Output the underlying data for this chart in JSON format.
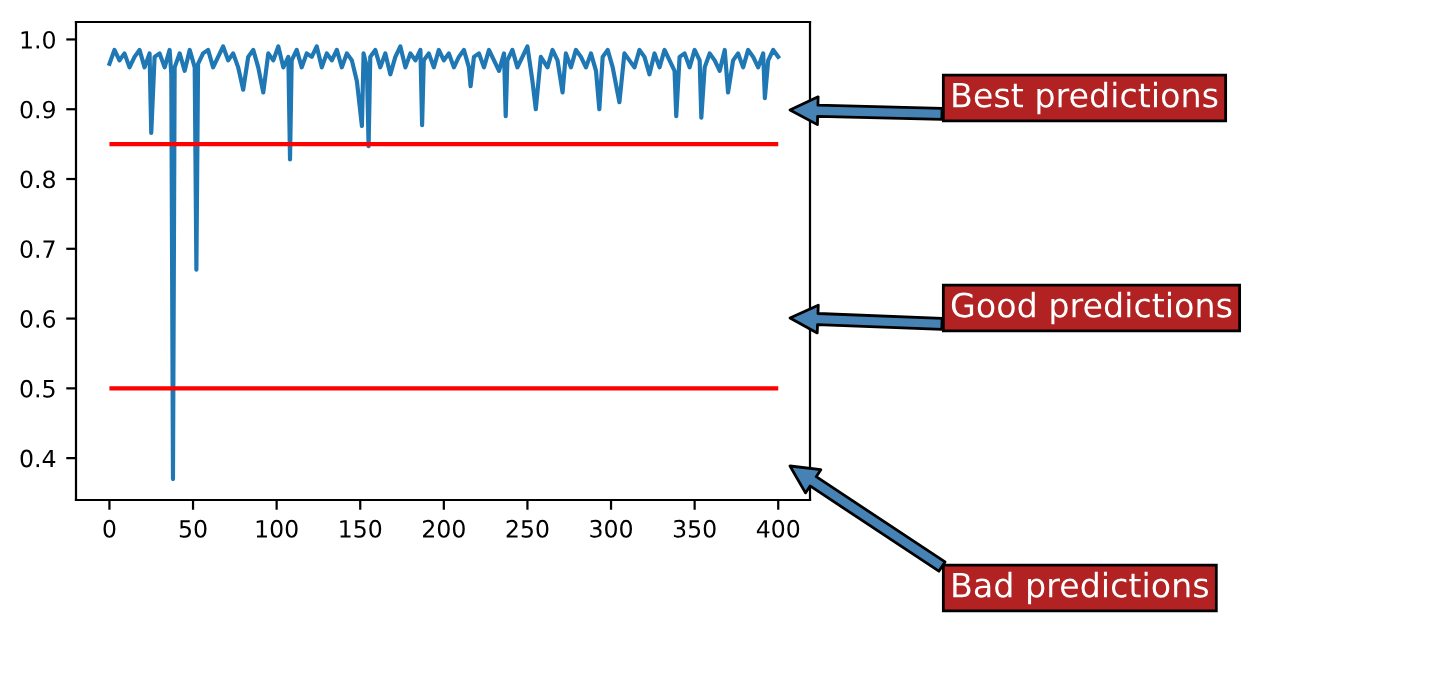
{
  "chart_data": {
    "type": "line",
    "x": [
      0,
      3,
      6,
      9,
      12,
      15,
      18,
      21,
      24,
      25,
      27,
      30,
      33,
      36,
      37,
      38,
      39,
      42,
      45,
      48,
      51,
      52,
      53,
      56,
      59,
      62,
      65,
      68,
      71,
      74,
      77,
      80,
      83,
      86,
      89,
      92,
      95,
      98,
      101,
      104,
      107,
      108,
      109,
      112,
      115,
      118,
      121,
      124,
      127,
      130,
      133,
      136,
      139,
      142,
      145,
      148,
      151,
      152,
      154,
      155,
      156,
      159,
      162,
      165,
      168,
      171,
      174,
      177,
      180,
      183,
      186,
      187,
      188,
      191,
      194,
      197,
      200,
      203,
      206,
      209,
      212,
      215,
      216,
      218,
      221,
      224,
      227,
      230,
      233,
      236,
      237,
      238,
      241,
      244,
      247,
      250,
      253,
      255,
      258,
      262,
      265,
      268,
      271,
      273,
      276,
      279,
      282,
      285,
      288,
      291,
      293,
      295,
      298,
      301,
      305,
      308,
      311,
      314,
      317,
      320,
      323,
      326,
      329,
      332,
      335,
      338,
      339,
      341,
      344,
      347,
      350,
      353,
      354,
      356,
      359,
      362,
      365,
      368,
      370,
      373,
      376,
      379,
      382,
      385,
      388,
      391,
      392,
      394,
      397,
      400
    ],
    "series": [
      {
        "color": "#1f77b4",
        "values": [
          0.965,
          0.985,
          0.97,
          0.98,
          0.96,
          0.975,
          0.985,
          0.96,
          0.98,
          0.866,
          0.975,
          0.98,
          0.96,
          0.985,
          0.95,
          0.37,
          0.96,
          0.98,
          0.955,
          0.985,
          0.96,
          0.67,
          0.965,
          0.98,
          0.985,
          0.96,
          0.975,
          0.99,
          0.97,
          0.98,
          0.96,
          0.928,
          0.975,
          0.985,
          0.96,
          0.924,
          0.98,
          0.97,
          0.99,
          0.96,
          0.975,
          0.828,
          0.97,
          0.985,
          0.96,
          0.98,
          0.975,
          0.99,
          0.96,
          0.98,
          0.97,
          0.985,
          0.96,
          0.98,
          0.97,
          0.94,
          0.876,
          0.98,
          0.96,
          0.847,
          0.975,
          0.985,
          0.96,
          0.98,
          0.95,
          0.975,
          0.99,
          0.96,
          0.98,
          0.97,
          0.985,
          0.877,
          0.97,
          0.98,
          0.96,
          0.985,
          0.97,
          0.98,
          0.96,
          0.975,
          0.985,
          0.96,
          0.933,
          0.975,
          0.98,
          0.96,
          0.985,
          0.97,
          0.955,
          0.98,
          0.89,
          0.97,
          0.985,
          0.96,
          0.975,
          0.99,
          0.94,
          0.9,
          0.975,
          0.96,
          0.985,
          0.97,
          0.924,
          0.98,
          0.96,
          0.985,
          0.975,
          0.96,
          0.98,
          0.955,
          0.9,
          0.975,
          0.985,
          0.96,
          0.91,
          0.98,
          0.97,
          0.96,
          0.985,
          0.975,
          0.95,
          0.98,
          0.96,
          0.985,
          0.97,
          0.955,
          0.89,
          0.975,
          0.98,
          0.96,
          0.985,
          0.97,
          0.888,
          0.96,
          0.98,
          0.97,
          0.955,
          0.985,
          0.924,
          0.97,
          0.98,
          0.96,
          0.985,
          0.975,
          0.96,
          0.98,
          0.916,
          0.97,
          0.985,
          0.975
        ]
      }
    ],
    "xlim": [
      -20,
      419
    ],
    "ylim": [
      0.34,
      1.025
    ],
    "xticks": [
      0,
      50,
      100,
      150,
      200,
      250,
      300,
      350,
      400
    ],
    "yticks": [
      0.4,
      0.5,
      0.6,
      0.7,
      0.8,
      0.9,
      {
        "value": 1,
        "label": "1.0"
      }
    ],
    "ref_lines": [
      {
        "axis": "y",
        "value": 0.85,
        "color": "#ff0000"
      },
      {
        "axis": "y",
        "value": 0.5,
        "color": "#ff0000"
      }
    ],
    "annotations": [
      "Best predictions",
      "Good predictions",
      "Bad predictions"
    ],
    "grid": false,
    "legend": false
  }
}
